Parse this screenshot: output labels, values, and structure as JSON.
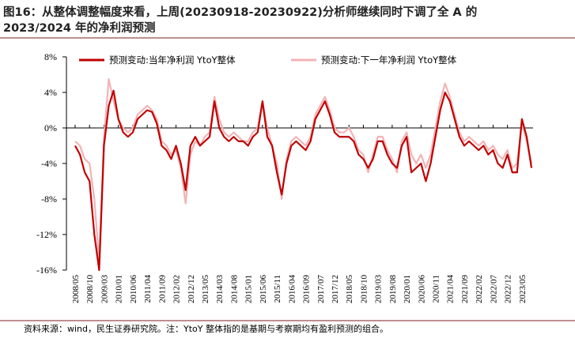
{
  "chart_data": {
    "type": "line",
    "title_lines": [
      "图16：从整体调整幅度来看，上周(20230918-20230922)分析师继续同时下调了全  A  的",
      "2023/2024 年的净利润预测"
    ],
    "note": "资料来源：wind，民生证券研究院。注：YtoY 整体指的是基期与考察期均有盈利预测的组合。",
    "categories": [
      "2008/05",
      null,
      null,
      "2008/10",
      null,
      null,
      "2009/03",
      null,
      null,
      "2010/01",
      null,
      null,
      "2010/06",
      null,
      null,
      "2011/04",
      null,
      null,
      "2011/09",
      null,
      null,
      "2012/02",
      null,
      null,
      "2012/12",
      null,
      null,
      "2013/05",
      null,
      null,
      "2014/03",
      null,
      null,
      "2014/08",
      null,
      null,
      "2015/01",
      null,
      null,
      "2015/06",
      null,
      null,
      "2015/11",
      null,
      null,
      "2016/04",
      null,
      null,
      "2016/09",
      null,
      null,
      "2017/07",
      null,
      null,
      "2017/12",
      null,
      null,
      "2018/05",
      null,
      null,
      "2018/10",
      null,
      null,
      "2019/03",
      null,
      null,
      "2019/08",
      null,
      null,
      "2020/01",
      null,
      null,
      "2020/06",
      null,
      null,
      "2020/11",
      null,
      null,
      "2021/04",
      null,
      null,
      "2021/09",
      null,
      null,
      "2022/02",
      null,
      null,
      "2022/07",
      null,
      null,
      "2022/12",
      null,
      null,
      "2023/05",
      null,
      null
    ],
    "series": [
      {
        "name": "预测变动:当年净利润 YtoY整体",
        "color": "#c00000",
        "values": [
          -2,
          -3,
          -5,
          -6,
          -12,
          -16,
          -2,
          2.5,
          4.2,
          1,
          -0.5,
          -1,
          -0.5,
          1,
          1.5,
          2,
          1.8,
          0.5,
          -2,
          -2.5,
          -3.5,
          -2,
          -4,
          -7,
          -2,
          -1,
          -2,
          -1.5,
          -1,
          3,
          0,
          -1,
          -1.5,
          -1,
          -1.5,
          -1.5,
          -2,
          -1,
          -0.5,
          3,
          -1,
          -2,
          -5,
          -7.5,
          -4,
          -2,
          -1.5,
          -2,
          -2.5,
          -1.5,
          1,
          2,
          3,
          1.5,
          -0.5,
          -1,
          -1,
          -1,
          -1.5,
          -3,
          -3.5,
          -4.5,
          -3.5,
          -1.5,
          -1.5,
          -3,
          -4,
          -4.5,
          -2,
          -1,
          -5,
          -4.5,
          -4,
          -6,
          -4,
          -1,
          2,
          4,
          3,
          1,
          -1,
          -2,
          -1.5,
          -2,
          -2.5,
          -2,
          -3,
          -2.5,
          -4,
          -4.5,
          -3,
          -5,
          -5,
          1,
          -1,
          -4.5
        ]
      },
      {
        "name": "预测变动:下一年净利润 YtoY整体",
        "color": "#f2b3b5",
        "values": [
          -1.5,
          -2,
          -3.5,
          -4,
          -8,
          -15,
          -1,
          5.5,
          3,
          1,
          0,
          -0.5,
          0,
          1.5,
          2,
          2.5,
          2,
          1,
          -1.5,
          -2,
          -3,
          -2.5,
          -4.5,
          -8.5,
          -3,
          -1.5,
          -2,
          -1,
          -0.5,
          3.5,
          1,
          -0.5,
          -1,
          -0.5,
          -1,
          -1.5,
          -1.5,
          -0.5,
          0,
          3,
          0,
          -2,
          -4,
          -8,
          -3.5,
          -1.5,
          -1,
          -1.5,
          -2,
          -1,
          1.5,
          2.5,
          3.5,
          2,
          0,
          -0.5,
          -0.5,
          0,
          -1,
          -2.5,
          -3,
          -5,
          -3,
          -1,
          -1,
          -2.5,
          -3.5,
          -5,
          -1.5,
          -0.5,
          -3,
          -4,
          -3,
          -4.5,
          -3,
          0,
          3,
          5,
          3.5,
          1.5,
          -0.5,
          -1.5,
          -1,
          -1.5,
          -2,
          -1.5,
          -2.5,
          -2,
          -3,
          -3.5,
          -2.5,
          -4.5,
          -4,
          0.5,
          -1.5,
          -4
        ]
      }
    ],
    "ylim": [
      -16,
      8
    ],
    "yticks": [
      {
        "value": -16,
        "label": "-16%"
      },
      {
        "value": -12,
        "label": "-12%"
      },
      {
        "value": -8,
        "label": "-8%"
      },
      {
        "value": -4,
        "label": "-4%"
      },
      {
        "value": 0,
        "label": "0%"
      },
      {
        "value": 4,
        "label": "4%"
      },
      {
        "value": 8,
        "label": "8%"
      }
    ],
    "legend": "top"
  }
}
